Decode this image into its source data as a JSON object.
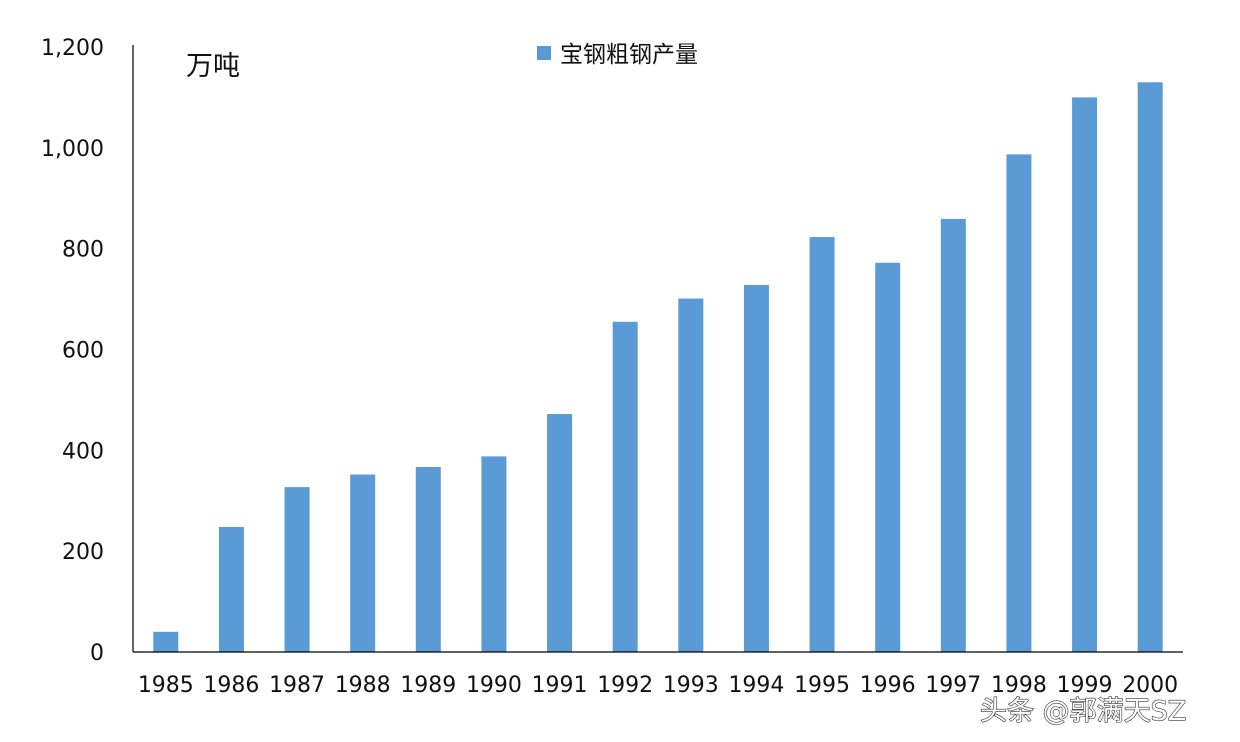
{
  "chart_data": {
    "type": "bar",
    "unit_label": "万吨",
    "categories": [
      "1985",
      "1986",
      "1987",
      "1988",
      "1989",
      "1990",
      "1991",
      "1992",
      "1993",
      "1994",
      "1995",
      "1996",
      "1997",
      "1998",
      "1999",
      "2000"
    ],
    "series": [
      {
        "name": "宝钢粗钢产量",
        "values": [
          40,
          248,
          327,
          352,
          367,
          388,
          472,
          655,
          701,
          728,
          823,
          772,
          859,
          987,
          1100,
          1130
        ]
      }
    ],
    "ylim": [
      0,
      1200
    ],
    "yticks": [
      "0",
      "200",
      "400",
      "600",
      "800",
      "1,000",
      "1,200"
    ],
    "ytick_values": [
      0,
      200,
      400,
      600,
      800,
      1000,
      1200
    ],
    "grid": false,
    "legend_position": "top-center",
    "colors": {
      "bar": "#5B9BD5",
      "axis": "#000000"
    }
  },
  "watermark": "头条 @郭满天SZ"
}
